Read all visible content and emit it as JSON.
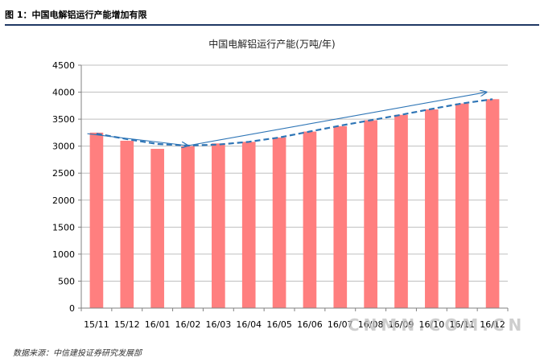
{
  "figure": {
    "caption": "图 1：中国电解铝运行产能增加有限",
    "source": "数据来源：中信建投证券研究发展部",
    "watermark": "CNMN.COM.CN"
  },
  "chart_data": {
    "type": "bar",
    "title": "中国电解铝运行产能(万吨/年)",
    "categories": [
      "15/11",
      "15/12",
      "16/01",
      "16/02",
      "16/03",
      "16/04",
      "16/05",
      "16/06",
      "16/07",
      "16/08",
      "16/09",
      "16/10",
      "16/11",
      "16/12"
    ],
    "values": [
      3250,
      3100,
      2950,
      3000,
      3050,
      3080,
      3160,
      3270,
      3370,
      3480,
      3580,
      3680,
      3790,
      3870
    ],
    "ylim": [
      0,
      4500
    ],
    "yticks": [
      0,
      500,
      1000,
      1500,
      2000,
      2500,
      3000,
      3500,
      4000,
      4500
    ],
    "xlabel": "",
    "ylabel": "",
    "grid": true,
    "bar_color": "#ff7f7f",
    "trend_line": {
      "style": "dashed",
      "color": "#2e75b6",
      "values": [
        3230,
        3130,
        3040,
        3010,
        3030,
        3080,
        3160,
        3270,
        3380,
        3480,
        3580,
        3690,
        3790,
        3870
      ]
    },
    "annotations": [
      {
        "type": "arrow",
        "color": "#2e75b6",
        "from": {
          "category": "15/11",
          "value": 3230
        },
        "to": {
          "category": "16/02",
          "value": 3010
        }
      },
      {
        "type": "arrow",
        "color": "#2e75b6",
        "from": {
          "category": "16/02",
          "value": 3010
        },
        "to": {
          "category": "16/12",
          "value": 4000
        }
      }
    ]
  }
}
